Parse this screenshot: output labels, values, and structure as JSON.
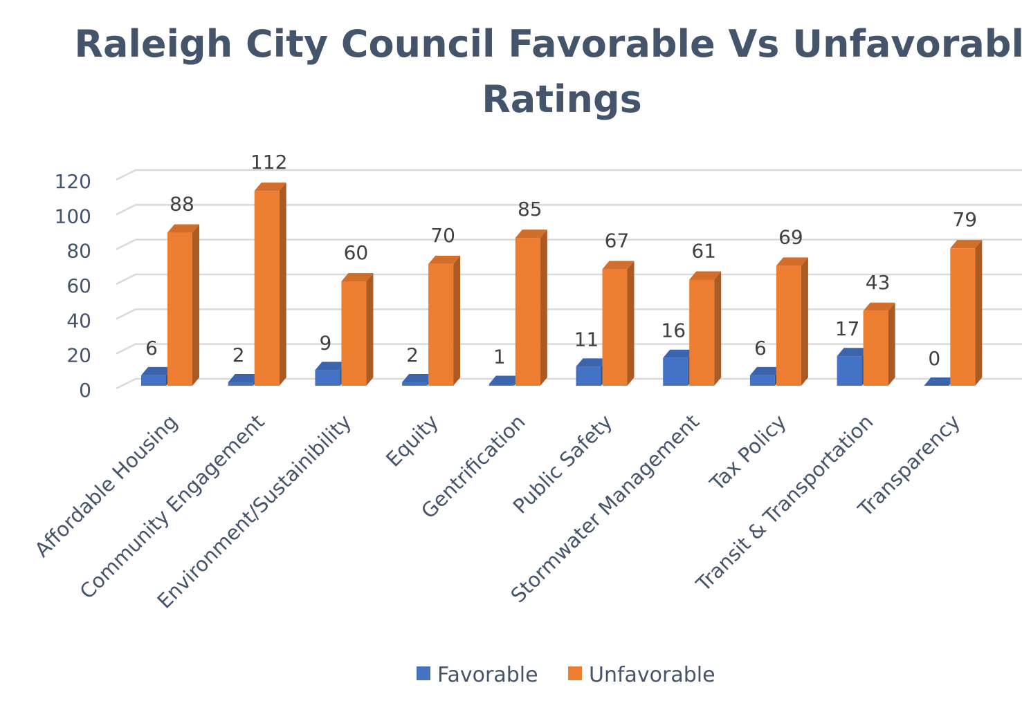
{
  "chart_data": {
    "type": "bar",
    "title": "Raleigh City Council Favorable Vs Unfavorable Ratings",
    "title_lines": [
      "Raleigh City Council Favorable Vs Unfavorable",
      "Ratings"
    ],
    "categories": [
      "Affordable Housing",
      "Community Engagement",
      "Environment/Sustainibility",
      "Equity",
      "Gentrification",
      "Public Safety",
      "Stormwater Management",
      "Tax Policy",
      "Transit & Transportation",
      "Transparency"
    ],
    "series": [
      {
        "name": "Favorable",
        "values": [
          6,
          2,
          9,
          2,
          1,
          11,
          16,
          6,
          17,
          0
        ],
        "color": "#4472c4"
      },
      {
        "name": "Unfavorable",
        "values": [
          88,
          112,
          60,
          70,
          85,
          67,
          61,
          69,
          43,
          79
        ],
        "color": "#ed7d31"
      }
    ],
    "ylim": [
      0,
      120
    ],
    "yticks": [
      0,
      20,
      40,
      60,
      80,
      100,
      120
    ],
    "grid": true,
    "legend": "bottom",
    "style": "3d-clustered-column",
    "colors": {
      "gridline": "#d9d9d9",
      "text": "#44546a",
      "data_label": "#404040"
    }
  }
}
